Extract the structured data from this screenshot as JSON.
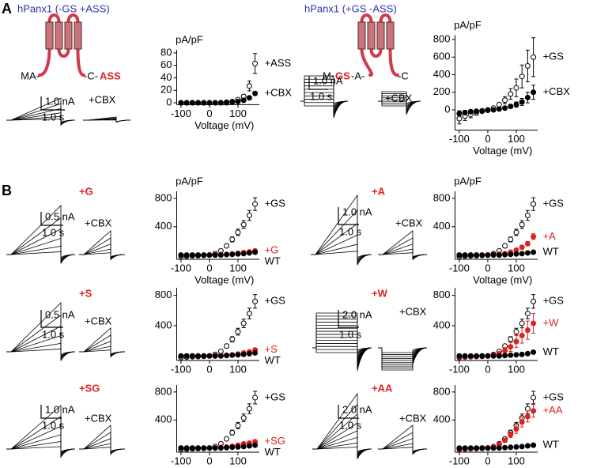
{
  "panel_labels": [
    "A",
    "B"
  ],
  "constructs": [
    {
      "title": "hPanx1 (-GS +ASS)",
      "n_term": "MA-",
      "middle": "-C-",
      "c_term": "ASS"
    },
    {
      "title": "hPanx1 (+GS -ASS)",
      "n_term": "M-",
      "insert": "GS",
      "middle": "-A-",
      "c_term": "-C"
    }
  ],
  "recordings": [
    {
      "current_scale": "1.0 nA",
      "time_scale": "1.0 s",
      "drug": "+CBX"
    },
    {
      "current_scale": "1.0 nA",
      "time_scale": "1.0 s",
      "drug": "+CBX"
    },
    {
      "variant": "+G",
      "current_scale": "0.5 nA",
      "time_scale": "1.0 s",
      "drug": "+CBX"
    },
    {
      "variant": "+A",
      "current_scale": "1.0 nA",
      "time_scale": "1.0 s",
      "drug": "+CBX"
    },
    {
      "variant": "+S",
      "current_scale": "0.5 nA",
      "time_scale": "1.0 s",
      "drug": "+CBX"
    },
    {
      "variant": "+W",
      "current_scale": "2.0 nA",
      "time_scale": "1.0 s",
      "drug": "+CBX"
    },
    {
      "variant": "+SG",
      "current_scale": "1.0 nA",
      "time_scale": "1.0 s",
      "drug": "+CBX"
    },
    {
      "variant": "+AA",
      "current_scale": "2.0 nA",
      "time_scale": "1.0 s",
      "drug": "+CBX"
    }
  ],
  "chart_data": [
    {
      "type": "scatter",
      "ylabel": "pA/pF",
      "xlabel": "Voltage (mV)",
      "x": [
        -100,
        -80,
        -60,
        -40,
        -20,
        0,
        20,
        40,
        60,
        80,
        100,
        120,
        140,
        160
      ],
      "xlim": [
        -115,
        175
      ],
      "xticks": [
        -100,
        0,
        100
      ],
      "ylim": [
        -3,
        85
      ],
      "yticks": [
        0,
        20,
        40,
        60,
        80
      ],
      "series": [
        {
          "name": "+ASS",
          "color": "#000000",
          "marker": "open",
          "values": [
            0,
            0,
            0,
            0,
            0,
            0,
            0,
            0,
            1,
            2,
            5,
            10,
            27,
            63
          ],
          "errors": [
            0,
            0,
            0,
            0,
            0,
            0,
            0,
            0,
            0,
            1,
            2,
            3,
            8,
            16
          ]
        },
        {
          "name": "+CBX",
          "color": "#000000",
          "marker": "filled",
          "values": [
            0,
            0,
            0,
            0,
            0,
            0,
            0,
            0,
            0,
            1,
            2,
            4,
            8,
            15
          ],
          "errors": [
            0,
            0,
            0,
            0,
            0,
            0,
            0,
            0,
            0,
            0,
            1,
            1,
            2,
            3
          ]
        }
      ]
    },
    {
      "type": "scatter",
      "ylabel": "pA/pF",
      "xlabel": "Voltage (mV)",
      "x": [
        -100,
        -80,
        -60,
        -40,
        -20,
        0,
        20,
        40,
        60,
        80,
        100,
        120,
        140,
        160
      ],
      "xlim": [
        -115,
        175
      ],
      "xticks": [
        -100,
        0,
        100
      ],
      "ylim": [
        -230,
        850
      ],
      "yticks": [
        0,
        200,
        400,
        600,
        800
      ],
      "series": [
        {
          "name": "+GS",
          "color": "#000000",
          "marker": "open",
          "values": [
            -100,
            -70,
            -50,
            -30,
            -15,
            0,
            20,
            60,
            110,
            180,
            250,
            380,
            500,
            600
          ],
          "errors": [
            60,
            50,
            40,
            30,
            20,
            10,
            0,
            20,
            40,
            60,
            100,
            130,
            180,
            220
          ]
        },
        {
          "name": "+CBX",
          "color": "#000000",
          "marker": "filled",
          "values": [
            -40,
            -30,
            -20,
            -15,
            -10,
            -5,
            0,
            10,
            20,
            40,
            60,
            90,
            140,
            200
          ],
          "errors": [
            30,
            25,
            20,
            15,
            10,
            5,
            0,
            10,
            15,
            20,
            30,
            40,
            60,
            80
          ]
        }
      ]
    },
    {
      "type": "scatter",
      "ylabel": "pA/pF",
      "xlabel": "Voltage (mV)",
      "x": [
        -100,
        -80,
        -60,
        -40,
        -20,
        0,
        20,
        40,
        60,
        80,
        100,
        120,
        140,
        160
      ],
      "xlim": [
        -115,
        175
      ],
      "xticks": [
        -100,
        0,
        100
      ],
      "ylim": [
        -60,
        900
      ],
      "yticks": [
        400,
        800
      ],
      "series": [
        {
          "name": "+GS",
          "color": "#000000",
          "marker": "open",
          "values": [
            -20,
            -15,
            -10,
            -8,
            -5,
            0,
            20,
            60,
            130,
            220,
            320,
            430,
            560,
            720
          ],
          "errors": [
            10,
            10,
            8,
            6,
            5,
            3,
            10,
            15,
            25,
            35,
            45,
            55,
            70,
            90
          ]
        },
        {
          "name": "+G",
          "color": "#e02020",
          "marker": "filled",
          "values": [
            0,
            0,
            0,
            0,
            0,
            0,
            0,
            5,
            10,
            15,
            25,
            35,
            45,
            60
          ],
          "errors": [
            0,
            0,
            0,
            0,
            0,
            0,
            0,
            3,
            4,
            5,
            6,
            8,
            10,
            15
          ]
        },
        {
          "name": "WT",
          "color": "#000000",
          "marker": "filled",
          "values": [
            0,
            0,
            0,
            0,
            0,
            0,
            0,
            0,
            5,
            10,
            15,
            20,
            30,
            40
          ]
        }
      ]
    },
    {
      "type": "scatter",
      "ylabel": "pA/pF",
      "xlabel": "Voltage (mV)",
      "x": [
        -100,
        -80,
        -60,
        -40,
        -20,
        0,
        20,
        40,
        60,
        80,
        100,
        120,
        140,
        160
      ],
      "xlim": [
        -115,
        175
      ],
      "xticks": [
        -100,
        0,
        100
      ],
      "ylim": [
        -60,
        900
      ],
      "yticks": [
        400,
        800
      ],
      "series": [
        {
          "name": "+GS",
          "color": "#000000",
          "marker": "open",
          "values": [
            -20,
            -15,
            -10,
            -8,
            -5,
            0,
            20,
            60,
            130,
            220,
            320,
            430,
            560,
            720
          ],
          "errors": [
            10,
            10,
            8,
            6,
            5,
            3,
            10,
            15,
            25,
            35,
            45,
            55,
            70,
            90
          ]
        },
        {
          "name": "+A",
          "color": "#e02020",
          "marker": "filled",
          "values": [
            0,
            0,
            0,
            0,
            0,
            0,
            5,
            10,
            20,
            40,
            70,
            110,
            160,
            260
          ],
          "errors": [
            0,
            0,
            0,
            0,
            0,
            0,
            3,
            5,
            8,
            10,
            15,
            20,
            30,
            40
          ]
        },
        {
          "name": "WT",
          "color": "#000000",
          "marker": "filled",
          "values": [
            0,
            0,
            0,
            0,
            0,
            0,
            0,
            0,
            5,
            10,
            15,
            20,
            30,
            40
          ]
        }
      ]
    },
    {
      "type": "scatter",
      "x": [
        -100,
        -80,
        -60,
        -40,
        -20,
        0,
        20,
        40,
        60,
        80,
        100,
        120,
        140,
        160
      ],
      "xlim": [
        -115,
        175
      ],
      "xticks": [
        -100,
        0,
        100
      ],
      "ylim": [
        -60,
        900
      ],
      "yticks": [
        400,
        800
      ],
      "series": [
        {
          "name": "+GS",
          "color": "#000000",
          "marker": "open",
          "values": [
            -20,
            -15,
            -10,
            -8,
            -5,
            0,
            20,
            60,
            130,
            220,
            320,
            430,
            560,
            720
          ],
          "errors": [
            10,
            10,
            8,
            6,
            5,
            3,
            10,
            15,
            25,
            35,
            45,
            55,
            70,
            90
          ]
        },
        {
          "name": "+S",
          "color": "#e02020",
          "marker": "filled",
          "values": [
            0,
            0,
            0,
            0,
            0,
            0,
            0,
            5,
            10,
            15,
            25,
            40,
            55,
            80
          ],
          "errors": [
            0,
            0,
            0,
            0,
            0,
            0,
            0,
            3,
            4,
            5,
            8,
            10,
            15,
            20
          ]
        },
        {
          "name": "WT",
          "color": "#000000",
          "marker": "filled",
          "values": [
            0,
            0,
            0,
            0,
            0,
            0,
            0,
            0,
            5,
            10,
            15,
            20,
            30,
            40
          ]
        }
      ]
    },
    {
      "type": "scatter",
      "x": [
        -100,
        -80,
        -60,
        -40,
        -20,
        0,
        20,
        40,
        60,
        80,
        100,
        120,
        140,
        160
      ],
      "xlim": [
        -115,
        175
      ],
      "xticks": [
        -100,
        0,
        100
      ],
      "ylim": [
        -60,
        900
      ],
      "yticks": [
        400,
        800
      ],
      "series": [
        {
          "name": "+GS",
          "color": "#000000",
          "marker": "open",
          "values": [
            -20,
            -15,
            -10,
            -8,
            -5,
            0,
            20,
            60,
            130,
            220,
            320,
            430,
            560,
            720
          ],
          "errors": [
            10,
            10,
            8,
            6,
            5,
            3,
            10,
            15,
            25,
            35,
            45,
            55,
            70,
            90
          ]
        },
        {
          "name": "+W",
          "color": "#e02020",
          "marker": "filled",
          "values": [
            -10,
            -10,
            -5,
            -5,
            0,
            0,
            10,
            30,
            70,
            120,
            190,
            270,
            340,
            430
          ],
          "errors": [
            5,
            5,
            5,
            5,
            3,
            3,
            10,
            20,
            40,
            60,
            80,
            100,
            120,
            130
          ]
        },
        {
          "name": "WT",
          "color": "#000000",
          "marker": "filled",
          "values": [
            0,
            0,
            0,
            0,
            0,
            0,
            0,
            0,
            5,
            10,
            15,
            20,
            30,
            50
          ]
        }
      ]
    },
    {
      "type": "scatter",
      "x": [
        -100,
        -80,
        -60,
        -40,
        -20,
        0,
        20,
        40,
        60,
        80,
        100,
        120,
        140,
        160
      ],
      "xlim": [
        -115,
        175
      ],
      "xticks": [
        -100,
        0,
        100
      ],
      "ylim": [
        -60,
        900
      ],
      "yticks": [
        400,
        800
      ],
      "series": [
        {
          "name": "+GS",
          "color": "#000000",
          "marker": "open",
          "values": [
            -20,
            -15,
            -10,
            -8,
            -5,
            0,
            20,
            60,
            130,
            220,
            320,
            430,
            560,
            720
          ],
          "errors": [
            10,
            10,
            8,
            6,
            5,
            3,
            10,
            15,
            25,
            35,
            45,
            55,
            70,
            90
          ]
        },
        {
          "name": "+SG",
          "color": "#e02020",
          "marker": "filled",
          "values": [
            0,
            0,
            0,
            0,
            0,
            0,
            0,
            10,
            15,
            25,
            40,
            60,
            70,
            90
          ],
          "errors": [
            0,
            0,
            0,
            0,
            0,
            0,
            0,
            3,
            5,
            6,
            8,
            10,
            15,
            20
          ]
        },
        {
          "name": "WT",
          "color": "#000000",
          "marker": "filled",
          "values": [
            0,
            0,
            0,
            0,
            0,
            0,
            0,
            0,
            5,
            10,
            15,
            20,
            30,
            40
          ]
        }
      ]
    },
    {
      "type": "scatter",
      "x": [
        -100,
        -80,
        -60,
        -40,
        -20,
        0,
        20,
        40,
        60,
        80,
        100,
        120,
        140,
        160
      ],
      "xlim": [
        -115,
        175
      ],
      "xticks": [
        -100,
        0,
        100
      ],
      "ylim": [
        -60,
        900
      ],
      "yticks": [
        400,
        800
      ],
      "series": [
        {
          "name": "+GS",
          "color": "#000000",
          "marker": "open",
          "values": [
            -20,
            -15,
            -10,
            -8,
            -5,
            0,
            20,
            60,
            130,
            220,
            320,
            430,
            560,
            720
          ],
          "errors": [
            10,
            10,
            8,
            6,
            5,
            3,
            10,
            15,
            25,
            35,
            45,
            55,
            70,
            90
          ]
        },
        {
          "name": "+AA",
          "color": "#e02020",
          "marker": "filled",
          "values": [
            -10,
            -8,
            -5,
            -3,
            0,
            0,
            20,
            50,
            110,
            190,
            270,
            370,
            450,
            530
          ],
          "errors": [
            5,
            5,
            5,
            5,
            3,
            3,
            10,
            20,
            30,
            40,
            60,
            70,
            80,
            90
          ]
        },
        {
          "name": "WT",
          "color": "#000000",
          "marker": "filled",
          "values": [
            0,
            0,
            0,
            0,
            0,
            0,
            0,
            0,
            5,
            10,
            15,
            20,
            30,
            40
          ]
        }
      ]
    }
  ]
}
